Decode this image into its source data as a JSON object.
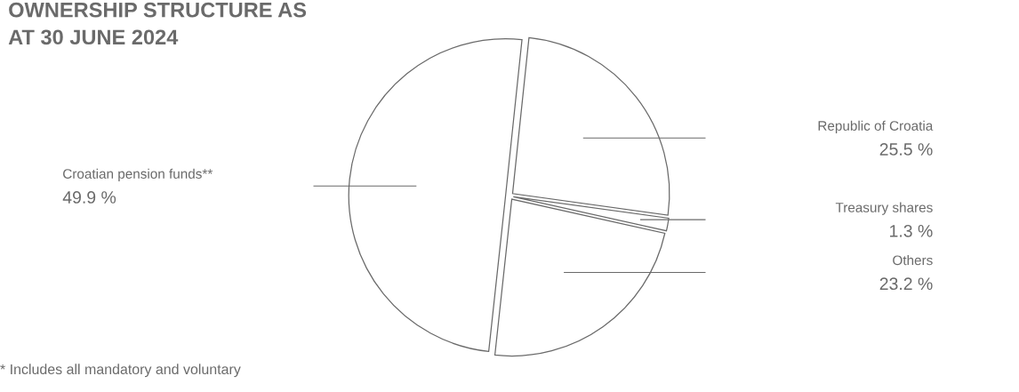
{
  "chart_data": {
    "type": "pie",
    "title": "OWNERSHIP STRUCTURE AS\nAT 30 JUNE 2024",
    "categories": [
      "Republic of Croatia",
      "Treasury shares",
      "Others",
      "Croatian pension funds**"
    ],
    "values": [
      25.5,
      1.3,
      23.2,
      49.9
    ],
    "value_labels": [
      "25.5 %",
      "1.3 %",
      "23.2 %",
      "49.9 %"
    ],
    "colors": [
      "#ffffff",
      "#ffffff",
      "#ffffff",
      "#ffffff"
    ],
    "annotations": [
      "* Includes all mandatory and voluntary"
    ]
  }
}
